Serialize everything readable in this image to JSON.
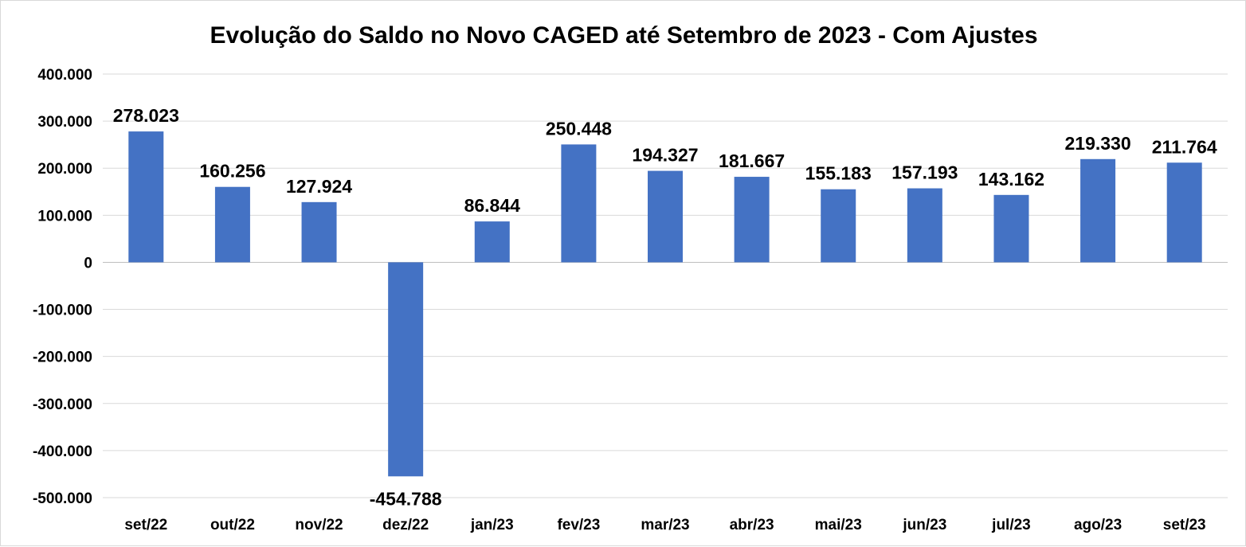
{
  "chart_data": {
    "type": "bar",
    "title": "Evolução do Saldo no Novo CAGED até Setembro de 2023 - Com Ajustes",
    "xlabel": "",
    "ylabel": "",
    "categories": [
      "set/22",
      "out/22",
      "nov/22",
      "dez/22",
      "jan/23",
      "fev/23",
      "mar/23",
      "abr/23",
      "mai/23",
      "jun/23",
      "jul/23",
      "ago/23",
      "set/23"
    ],
    "values": [
      278023,
      160256,
      127924,
      -454788,
      86844,
      250448,
      194327,
      181667,
      155183,
      157193,
      143162,
      219330,
      211764
    ],
    "data_labels": [
      "278.023",
      "160.256",
      "127.924",
      "-454.788",
      "86.844",
      "250.448",
      "194.327",
      "181.667",
      "155.183",
      "157.193",
      "143.162",
      "219.330",
      "211.764"
    ],
    "ylim": [
      -500000,
      400000
    ],
    "yticks": [
      400000,
      300000,
      200000,
      100000,
      0,
      -100000,
      -200000,
      -300000,
      -400000,
      -500000
    ],
    "ytick_labels": [
      "400.000",
      "300.000",
      "200.000",
      "100.000",
      "0",
      "-100.000",
      "-200.000",
      "-300.000",
      "-400.000",
      "-500.000"
    ],
    "grid": true,
    "legend": "none",
    "colors": {
      "bar": "#4472C4",
      "grid": "#D9D9D9",
      "text": "#000000"
    }
  }
}
